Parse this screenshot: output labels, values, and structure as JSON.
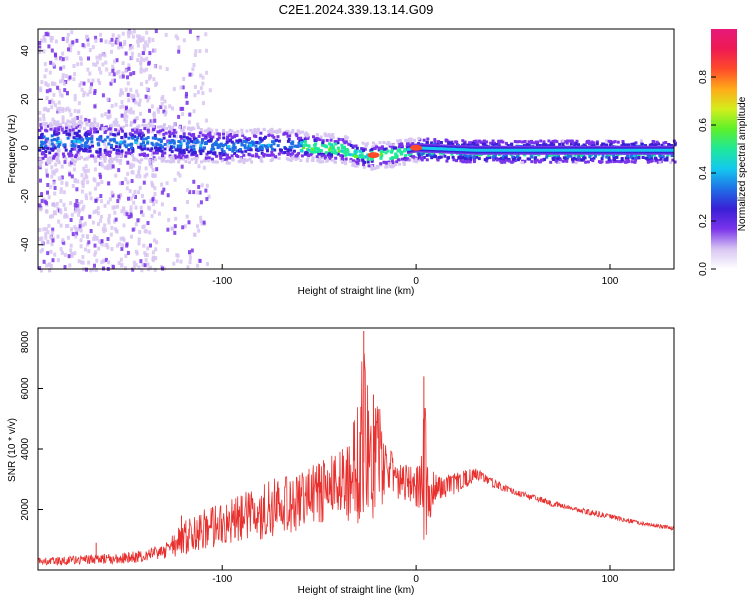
{
  "figure": {
    "title": "C2E1.2024.339.13.14.G09"
  },
  "chart_data": [
    {
      "type": "heatmap",
      "xlabel": "Height of straight line (km)",
      "ylabel": "Frequency (Hz)",
      "xlim": [
        -195,
        133
      ],
      "ylim": [
        -50,
        49
      ],
      "xticks": [
        -100,
        0,
        100
      ],
      "yticks": [
        -40,
        -20,
        0,
        20,
        40
      ],
      "colorbar": {
        "label": "Normalized spectral amplitude",
        "range": [
          0,
          1
        ],
        "ticks": [
          0.0,
          0.2,
          0.4,
          0.6,
          0.8
        ],
        "tick_labels": [
          "0.0",
          "0.2",
          "0.4",
          "0.6",
          "0.8"
        ],
        "colormap": [
          "#ffffff",
          "#d8c6f2",
          "#7a34ea",
          "#3a1fd6",
          "#1f6fe6",
          "#14c8f0",
          "#1ee89a",
          "#5cf02a",
          "#d4ee1c",
          "#ffaa18",
          "#ff4a2a",
          "#ee1a52",
          "#e6197a"
        ]
      },
      "ridge": {
        "description": "energy concentrated near 0 Hz; scattered broadband noise for heights below about -130 km",
        "band_center_hz": [
          [
            -180,
            3
          ],
          [
            -140,
            3
          ],
          [
            -100,
            1
          ],
          [
            -70,
            2
          ],
          [
            -40,
            0
          ],
          [
            -25,
            -3
          ],
          [
            -12,
            -2
          ],
          [
            0,
            0
          ],
          [
            30,
            -1
          ],
          [
            133,
            -1
          ]
        ],
        "peak_points": [
          [
            -22,
            -3
          ],
          [
            0,
            0
          ]
        ]
      }
    },
    {
      "type": "line",
      "xlabel": "Height of straight line (km)",
      "ylabel": "SNR (10 * v/v)",
      "xlim": [
        -195,
        133
      ],
      "ylim": [
        0,
        8000
      ],
      "xticks": [
        -100,
        0,
        100
      ],
      "yticks": [
        2000,
        4000,
        6000,
        8000
      ],
      "line_color": "#e8302e",
      "series": [
        {
          "name": "",
          "envelope_x": [
            -195,
            -170,
            -150,
            -140,
            -130,
            -120,
            -110,
            -100,
            -90,
            -80,
            -70,
            -60,
            -50,
            -40,
            -35,
            -30,
            -27,
            -25,
            -23,
            -20,
            -15,
            -10,
            -5,
            -2,
            0,
            2,
            4,
            5,
            6,
            8,
            10,
            15,
            20,
            25,
            30,
            35,
            40,
            50,
            60,
            70,
            80,
            90,
            100,
            110,
            120,
            133
          ],
          "envelope_lo": [
            150,
            180,
            220,
            250,
            350,
            500,
            700,
            800,
            900,
            1000,
            1100,
            1300,
            1500,
            1800,
            1600,
            1300,
            1200,
            1400,
            1500,
            1800,
            2000,
            2300,
            2300,
            2200,
            2100,
            1900,
            1000,
            900,
            1400,
            1900,
            2300,
            2400,
            2500,
            2700,
            2900,
            2900,
            2700,
            2500,
            2300,
            2100,
            2000,
            1800,
            1700,
            1550,
            1450,
            1300
          ],
          "envelope_hi": [
            400,
            500,
            600,
            650,
            900,
            1600,
            2000,
            2200,
            2500,
            2900,
            3100,
            3300,
            3600,
            4000,
            4200,
            5500,
            7900,
            7000,
            5200,
            5800,
            4200,
            3600,
            3500,
            3500,
            3400,
            3600,
            6400,
            5200,
            3500,
            3300,
            3200,
            3100,
            3200,
            3300,
            3400,
            3200,
            3000,
            2700,
            2500,
            2300,
            2100,
            2000,
            1850,
            1700,
            1550,
            1450
          ],
          "peaks": [
            [
              -27,
              7900
            ],
            [
              -22,
              5800
            ],
            [
              4,
              6400
            ],
            [
              -121,
              1800
            ],
            [
              -165,
              900
            ]
          ]
        }
      ]
    }
  ]
}
